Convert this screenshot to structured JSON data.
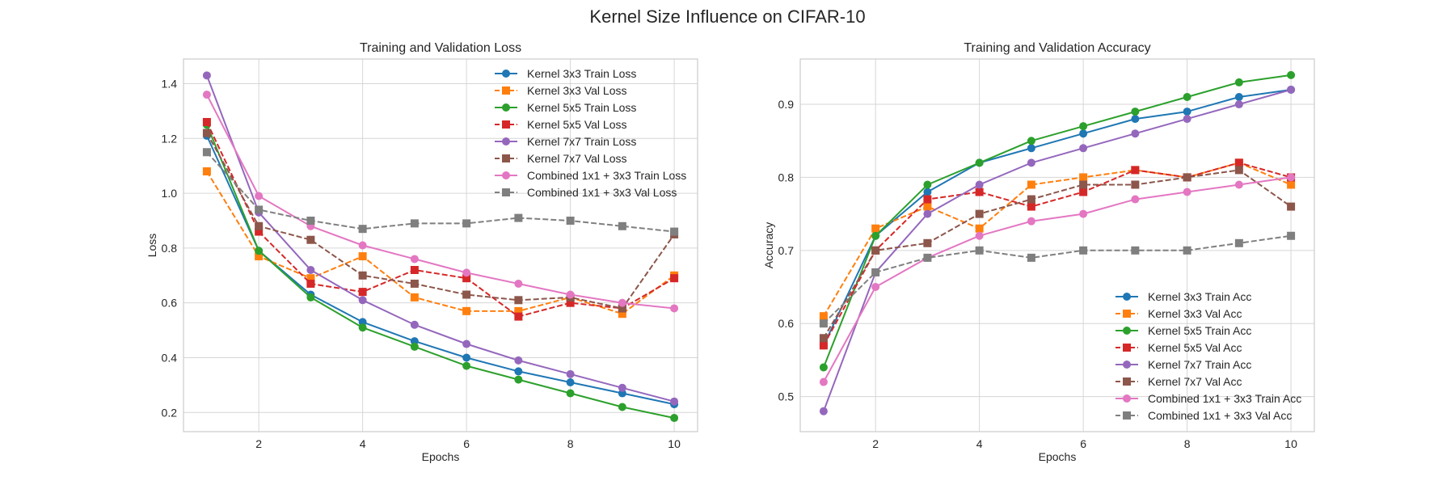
{
  "figure": {
    "suptitle": "Kernel Size Influence on CIFAR-10"
  },
  "colors": {
    "blue": "#1f77b4",
    "orange": "#ff7f0e",
    "green": "#2ca02c",
    "red": "#d62728",
    "purple": "#9467bd",
    "brown": "#8c564b",
    "pink": "#e377c2",
    "gray": "#7f7f7f"
  },
  "chart_data": [
    {
      "type": "line",
      "title": "Training and Validation Loss",
      "xlabel": "Epochs",
      "ylabel": "Loss",
      "xlim": [
        0.55,
        10.45
      ],
      "ylim": [
        0.13,
        1.49
      ],
      "xticks": [
        2,
        4,
        6,
        8,
        10
      ],
      "yticks": [
        0.2,
        0.4,
        0.6,
        0.8,
        1.0,
        1.2,
        1.4
      ],
      "grid": true,
      "legend": "top-right",
      "x": [
        1,
        2,
        3,
        4,
        5,
        6,
        7,
        8,
        9,
        10
      ],
      "series": [
        {
          "name": "Kernel 3x3 Train Loss",
          "color": "blue",
          "dash": "solid",
          "marker": "circle",
          "values": [
            1.21,
            0.79,
            0.63,
            0.53,
            0.46,
            0.4,
            0.35,
            0.31,
            0.27,
            0.23
          ]
        },
        {
          "name": "Kernel 3x3 Val Loss",
          "color": "orange",
          "dash": "dashed",
          "marker": "square",
          "values": [
            1.08,
            0.77,
            0.69,
            0.77,
            0.62,
            0.57,
            0.57,
            0.62,
            0.56,
            0.7
          ]
        },
        {
          "name": "Kernel 5x5 Train Loss",
          "color": "green",
          "dash": "solid",
          "marker": "circle",
          "values": [
            1.25,
            0.79,
            0.62,
            0.51,
            0.44,
            0.37,
            0.32,
            0.27,
            0.22,
            0.18
          ]
        },
        {
          "name": "Kernel 5x5 Val Loss",
          "color": "red",
          "dash": "dashed",
          "marker": "square",
          "values": [
            1.26,
            0.86,
            0.67,
            0.64,
            0.72,
            0.69,
            0.55,
            0.6,
            0.58,
            0.69
          ]
        },
        {
          "name": "Kernel 7x7 Train Loss",
          "color": "purple",
          "dash": "solid",
          "marker": "circle",
          "values": [
            1.43,
            0.93,
            0.72,
            0.61,
            0.52,
            0.45,
            0.39,
            0.34,
            0.29,
            0.24
          ]
        },
        {
          "name": "Kernel 7x7 Val Loss",
          "color": "brown",
          "dash": "dashed",
          "marker": "square",
          "values": [
            1.22,
            0.88,
            0.83,
            0.7,
            0.67,
            0.63,
            0.61,
            0.62,
            0.58,
            0.85
          ]
        },
        {
          "name": "Combined 1x1 + 3x3 Train Loss",
          "color": "pink",
          "dash": "solid",
          "marker": "circle",
          "values": [
            1.36,
            0.99,
            0.88,
            0.81,
            0.76,
            0.71,
            0.67,
            0.63,
            0.6,
            0.58
          ]
        },
        {
          "name": "Combined 1x1 + 3x3 Val Loss",
          "color": "gray",
          "dash": "dashed",
          "marker": "square",
          "values": [
            1.15,
            0.94,
            0.9,
            0.87,
            0.89,
            0.89,
            0.91,
            0.9,
            0.88,
            0.86
          ]
        }
      ]
    },
    {
      "type": "line",
      "title": "Training and Validation Accuracy",
      "xlabel": "Epochs",
      "ylabel": "Accuracy",
      "xlim": [
        0.55,
        10.45
      ],
      "ylim": [
        0.452,
        0.962
      ],
      "xticks": [
        2,
        4,
        6,
        8,
        10
      ],
      "yticks": [
        0.5,
        0.6,
        0.7,
        0.8,
        0.9
      ],
      "grid": true,
      "legend": "lower-right",
      "x": [
        1,
        2,
        3,
        4,
        5,
        6,
        7,
        8,
        9,
        10
      ],
      "series": [
        {
          "name": "Kernel 3x3 Train Acc",
          "color": "blue",
          "dash": "solid",
          "marker": "circle",
          "values": [
            0.57,
            0.72,
            0.78,
            0.82,
            0.84,
            0.86,
            0.88,
            0.89,
            0.91,
            0.92
          ]
        },
        {
          "name": "Kernel 3x3 Val Acc",
          "color": "orange",
          "dash": "dashed",
          "marker": "square",
          "values": [
            0.61,
            0.73,
            0.76,
            0.73,
            0.79,
            0.8,
            0.81,
            0.8,
            0.82,
            0.79
          ]
        },
        {
          "name": "Kernel 5x5 Train Acc",
          "color": "green",
          "dash": "solid",
          "marker": "circle",
          "values": [
            0.54,
            0.72,
            0.79,
            0.82,
            0.85,
            0.87,
            0.89,
            0.91,
            0.93,
            0.94
          ]
        },
        {
          "name": "Kernel 5x5 Val Acc",
          "color": "red",
          "dash": "dashed",
          "marker": "square",
          "values": [
            0.57,
            0.7,
            0.77,
            0.78,
            0.76,
            0.78,
            0.81,
            0.8,
            0.82,
            0.8
          ]
        },
        {
          "name": "Kernel 7x7 Train Acc",
          "color": "purple",
          "dash": "solid",
          "marker": "circle",
          "values": [
            0.48,
            0.67,
            0.75,
            0.79,
            0.82,
            0.84,
            0.86,
            0.88,
            0.9,
            0.92
          ]
        },
        {
          "name": "Kernel 7x7 Val Acc",
          "color": "brown",
          "dash": "dashed",
          "marker": "square",
          "values": [
            0.58,
            0.7,
            0.71,
            0.75,
            0.77,
            0.79,
            0.79,
            0.8,
            0.81,
            0.76
          ]
        },
        {
          "name": "Combined 1x1 + 3x3 Train Acc",
          "color": "pink",
          "dash": "solid",
          "marker": "circle",
          "values": [
            0.52,
            0.65,
            0.69,
            0.72,
            0.74,
            0.75,
            0.77,
            0.78,
            0.79,
            0.8
          ]
        },
        {
          "name": "Combined 1x1 + 3x3 Val Acc",
          "color": "gray",
          "dash": "dashed",
          "marker": "square",
          "values": [
            0.6,
            0.67,
            0.69,
            0.7,
            0.69,
            0.7,
            0.7,
            0.7,
            0.71,
            0.72
          ]
        }
      ]
    }
  ]
}
